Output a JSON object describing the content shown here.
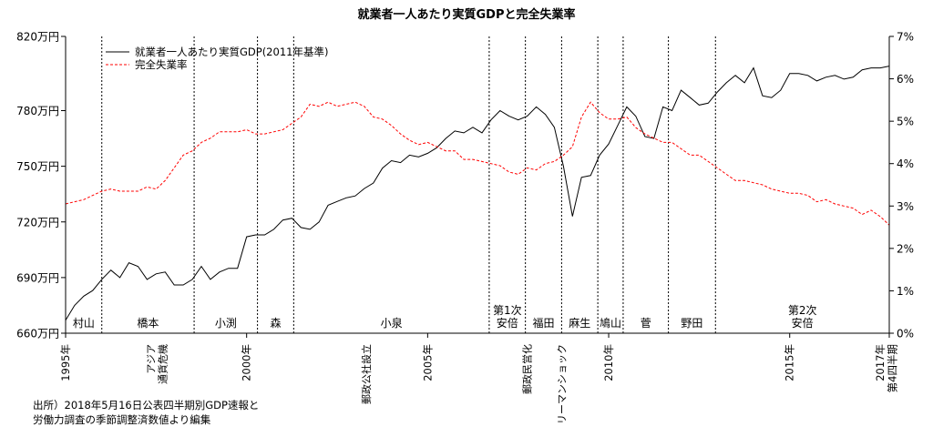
{
  "chart_data": {
    "type": "line",
    "title": "就業者一人あたり実質GDPと完全失業率",
    "x_range": [
      1995.0,
      2017.75
    ],
    "y_left": {
      "range": [
        660,
        820
      ],
      "ticks": [
        "660万円",
        "690万円",
        "720万円",
        "750万円",
        "780万円",
        "820万円"
      ],
      "tick_values": [
        660,
        690,
        720,
        750,
        780,
        820
      ]
    },
    "y_right": {
      "range": [
        0,
        7
      ],
      "ticks": [
        "0%",
        "1%",
        "2%",
        "3%",
        "4%",
        "5%",
        "6%",
        "7%"
      ],
      "tick_values": [
        0,
        1,
        2,
        3,
        4,
        5,
        6,
        7
      ]
    },
    "x_ticks": [
      {
        "label": "1995年",
        "x": 1995.0
      },
      {
        "label": "2000年",
        "x": 2000.0
      },
      {
        "label": "2005年",
        "x": 2005.0
      },
      {
        "label": "2010年",
        "x": 2010.0
      },
      {
        "label": "2015年",
        "x": 2015.0
      },
      {
        "label": "2017年",
        "label2": "第4四半期",
        "x": 2017.75
      }
    ],
    "legend": {
      "placement": "top-left",
      "items": [
        "就業者一人あたり実質GDP(2011年基準)",
        "完全失業率"
      ]
    },
    "series": [
      {
        "name": "就業者一人あたり実質GDP(2011年基準)",
        "axis": "left",
        "color": "#000000",
        "style": "solid",
        "x": [
          1995.0,
          1995.25,
          1995.5,
          1995.75,
          1996.0,
          1996.25,
          1996.5,
          1996.75,
          1997.0,
          1997.25,
          1997.5,
          1997.75,
          1998.0,
          1998.25,
          1998.5,
          1998.75,
          1999.0,
          1999.25,
          1999.5,
          1999.75,
          2000.0,
          2000.25,
          2000.5,
          2000.75,
          2001.0,
          2001.25,
          2001.5,
          2001.75,
          2002.0,
          2002.25,
          2002.5,
          2002.75,
          2003.0,
          2003.25,
          2003.5,
          2003.75,
          2004.0,
          2004.25,
          2004.5,
          2004.75,
          2005.0,
          2005.25,
          2005.5,
          2005.75,
          2006.0,
          2006.25,
          2006.5,
          2006.75,
          2007.0,
          2007.25,
          2007.5,
          2007.75,
          2008.0,
          2008.25,
          2008.5,
          2008.75,
          2009.0,
          2009.25,
          2009.5,
          2009.75,
          2010.0,
          2010.25,
          2010.5,
          2010.75,
          2011.0,
          2011.25,
          2011.5,
          2011.75,
          2012.0,
          2012.25,
          2012.5,
          2012.75,
          2013.0,
          2013.25,
          2013.5,
          2013.75,
          2014.0,
          2014.25,
          2014.5,
          2014.75,
          2015.0,
          2015.25,
          2015.5,
          2015.75,
          2016.0,
          2016.25,
          2016.5,
          2016.75,
          2017.0,
          2017.25,
          2017.5,
          2017.75
        ],
        "values": [
          667,
          675,
          680,
          683,
          689,
          694,
          690,
          698,
          696,
          689,
          692,
          693,
          686,
          686,
          689,
          696,
          689,
          693,
          695,
          695,
          712,
          713,
          713,
          716,
          721,
          722,
          717,
          716,
          720,
          729,
          731,
          733,
          734,
          738,
          741,
          749,
          753,
          752,
          756,
          755,
          757,
          760,
          765,
          769,
          768,
          771,
          768,
          775,
          780,
          777,
          775,
          777,
          782,
          778,
          771,
          750,
          723,
          744,
          745,
          756,
          762,
          772,
          782,
          777,
          766,
          765,
          782,
          780,
          791,
          787,
          783,
          784,
          790,
          795,
          799,
          795,
          803,
          788,
          787,
          791,
          800,
          800,
          799,
          796,
          798,
          799,
          797,
          798,
          802,
          803,
          803,
          804
        ],
        "note": "values in 万円"
      },
      {
        "name": "完全失業率",
        "axis": "right",
        "color": "#ff0000",
        "style": "dashed",
        "x": [
          1995.0,
          1995.25,
          1995.5,
          1995.75,
          1996.0,
          1996.25,
          1996.5,
          1996.75,
          1997.0,
          1997.25,
          1997.5,
          1997.75,
          1998.0,
          1998.25,
          1998.5,
          1998.75,
          1999.0,
          1999.25,
          1999.5,
          1999.75,
          2000.0,
          2000.25,
          2000.5,
          2000.75,
          2001.0,
          2001.25,
          2001.5,
          2001.75,
          2002.0,
          2002.25,
          2002.5,
          2002.75,
          2003.0,
          2003.25,
          2003.5,
          2003.75,
          2004.0,
          2004.25,
          2004.5,
          2004.75,
          2005.0,
          2005.25,
          2005.5,
          2005.75,
          2006.0,
          2006.25,
          2006.5,
          2006.75,
          2007.0,
          2007.25,
          2007.5,
          2007.75,
          2008.0,
          2008.25,
          2008.5,
          2008.75,
          2009.0,
          2009.25,
          2009.5,
          2009.75,
          2010.0,
          2010.25,
          2010.5,
          2010.75,
          2011.0,
          2011.25,
          2011.5,
          2011.75,
          2012.0,
          2012.25,
          2012.5,
          2012.75,
          2013.0,
          2013.25,
          2013.5,
          2013.75,
          2014.0,
          2014.25,
          2014.5,
          2014.75,
          2015.0,
          2015.25,
          2015.5,
          2015.75,
          2016.0,
          2016.25,
          2016.5,
          2016.75,
          2017.0,
          2017.25,
          2017.5,
          2017.75
        ],
        "values": [
          3.05,
          3.1,
          3.15,
          3.25,
          3.35,
          3.4,
          3.35,
          3.35,
          3.35,
          3.45,
          3.4,
          3.6,
          3.9,
          4.2,
          4.3,
          4.5,
          4.6,
          4.75,
          4.75,
          4.75,
          4.8,
          4.7,
          4.7,
          4.75,
          4.8,
          4.95,
          5.1,
          5.4,
          5.35,
          5.45,
          5.35,
          5.4,
          5.45,
          5.35,
          5.1,
          5.05,
          4.9,
          4.7,
          4.55,
          4.45,
          4.5,
          4.4,
          4.3,
          4.3,
          4.1,
          4.1,
          4.05,
          4.0,
          3.95,
          3.8,
          3.75,
          3.9,
          3.85,
          4.0,
          4.05,
          4.2,
          4.4,
          5.1,
          5.45,
          5.2,
          5.05,
          5.05,
          5.1,
          4.85,
          4.7,
          4.6,
          4.5,
          4.5,
          4.35,
          4.2,
          4.2,
          4.05,
          3.9,
          3.75,
          3.6,
          3.6,
          3.55,
          3.5,
          3.4,
          3.35,
          3.3,
          3.3,
          3.25,
          3.1,
          3.15,
          3.05,
          3.0,
          2.95,
          2.8,
          2.9,
          2.75,
          2.55
        ],
        "note": "values in %"
      }
    ],
    "periods": [
      {
        "label": "村山",
        "label2": "",
        "start": 1995.0,
        "end": 1996.0
      },
      {
        "label": "橋本",
        "label2": "",
        "start": 1996.0,
        "end": 1998.55
      },
      {
        "label": "小渕",
        "label2": "",
        "start": 1998.55,
        "end": 2000.3
      },
      {
        "label": "森",
        "label2": "",
        "start": 2000.3,
        "end": 2001.3
      },
      {
        "label": "小泉",
        "label2": "",
        "start": 2001.3,
        "end": 2006.7
      },
      {
        "label": "第1次",
        "label2": "安倍",
        "start": 2006.7,
        "end": 2007.7
      },
      {
        "label": "福田",
        "label2": "",
        "start": 2007.7,
        "end": 2008.7
      },
      {
        "label": "麻生",
        "label2": "",
        "start": 2008.7,
        "end": 2009.7
      },
      {
        "label": "鳩山",
        "label2": "",
        "start": 2009.7,
        "end": 2010.4
      },
      {
        "label": "菅",
        "label2": "",
        "start": 2010.4,
        "end": 2011.65
      },
      {
        "label": "野田",
        "label2": "",
        "start": 2011.65,
        "end": 2012.95
      },
      {
        "label": "第2次",
        "label2": "安倍",
        "start": 2012.95,
        "end": 2017.75
      }
    ],
    "events": [
      {
        "label": "アジア",
        "label2": "通貨危機",
        "x": 1997.6
      },
      {
        "label": "郵政公社設立",
        "label2": "",
        "x": 2003.3
      },
      {
        "label": "郵政民営化",
        "label2": "",
        "x": 2007.75
      },
      {
        "label": "リーマンショック",
        "label2": "",
        "x": 2008.7
      }
    ],
    "source": [
      "出所）2018年5月16日公表四半期別GDP速報と",
      "労働力調査の季節調整済数値より編集"
    ]
  }
}
